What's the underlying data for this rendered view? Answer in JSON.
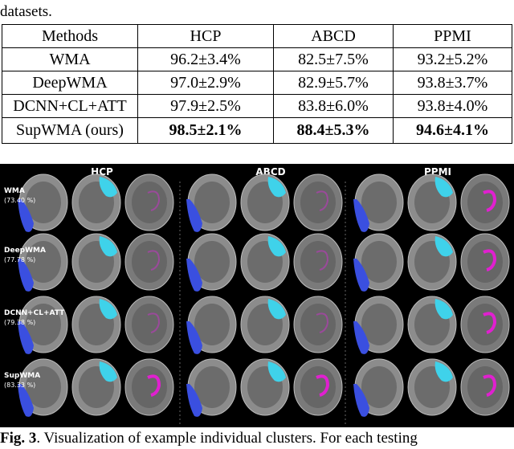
{
  "intro": "datasets.",
  "table": {
    "header": [
      "Methods",
      "HCP",
      "ABCD",
      "PPMI"
    ],
    "rows": [
      [
        "WMA",
        "96.2±3.4%",
        "82.5±7.5%",
        "93.2±5.2%"
      ],
      [
        "DeepWMA",
        "97.0±2.9%",
        "82.9±5.7%",
        "93.8±3.7%"
      ],
      [
        "DCNN+CL+ATT",
        "97.9±2.5%",
        "83.8±6.0%",
        "93.8±4.0%"
      ],
      [
        "SupWMA (ours)",
        "98.5±2.1%",
        "88.4±5.3%",
        "94.6±4.1%"
      ]
    ]
  },
  "figure": {
    "columns": [
      "HCP",
      "ABCD",
      "PPMI"
    ],
    "rows": [
      {
        "method": "WMA",
        "score": "(73.40 %)"
      },
      {
        "method": "DeepWMA",
        "score": "(77.78 %)"
      },
      {
        "method": "DCNN+CL+ATT",
        "score": "(79.38 %)"
      },
      {
        "method": "SupWMA",
        "score": "(83.33 %)"
      }
    ]
  },
  "caption": {
    "label": "Fig. 3",
    "text": ". Visualization of example individual clusters. For each testing"
  }
}
